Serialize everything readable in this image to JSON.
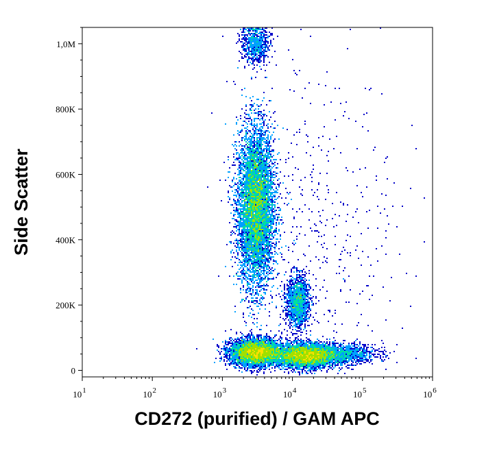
{
  "chart_data": {
    "type": "scatter",
    "subtype": "flow-cytometry-density-dot-plot",
    "xlabel": "CD272 (purified) / GAM APC",
    "ylabel": "Side Scatter",
    "xscale": "log",
    "xlim": [
      10,
      1000000
    ],
    "ylim": [
      -20000,
      1050000
    ],
    "grid": false,
    "legend": "none",
    "x_ticks": [
      {
        "value": 10,
        "base": "10",
        "exp": "1"
      },
      {
        "value": 100,
        "base": "10",
        "exp": "2"
      },
      {
        "value": 1000,
        "base": "10",
        "exp": "3"
      },
      {
        "value": 10000,
        "base": "10",
        "exp": "4"
      },
      {
        "value": 100000,
        "base": "10",
        "exp": "5"
      },
      {
        "value": 1000000,
        "base": "10",
        "exp": "6"
      }
    ],
    "y_ticks": [
      {
        "value": 0,
        "label": "0"
      },
      {
        "value": 200000,
        "label": "200K"
      },
      {
        "value": 400000,
        "label": "400K"
      },
      {
        "value": 600000,
        "label": "600K"
      },
      {
        "value": 800000,
        "label": "800K"
      },
      {
        "value": 1000000,
        "label": "1,0M"
      }
    ],
    "density_colors": [
      "#0000c8",
      "#00a0ff",
      "#00e0a0",
      "#a0e000",
      "#ffe000",
      "#ff6000",
      "#e00000"
    ],
    "populations": [
      {
        "x_center": 3000,
        "x_spread_decades": 0.13,
        "y_center": 500000,
        "y_spread": 120000,
        "fraction": 0.4,
        "peak_density": "yellow-red"
      },
      {
        "x_center": 12000,
        "x_spread_decades": 0.08,
        "y_center": 210000,
        "y_spread": 40000,
        "fraction": 0.06,
        "peak_density": "green"
      },
      {
        "x_center": 3000,
        "x_spread_decades": 0.18,
        "y_center": 55000,
        "y_spread": 20000,
        "fraction": 0.22,
        "peak_density": "red"
      },
      {
        "x_center": 15000,
        "x_spread_decades": 0.22,
        "y_center": 45000,
        "y_spread": 18000,
        "fraction": 0.22,
        "peak_density": "red"
      },
      {
        "x_center": 50000,
        "x_spread_decades": 0.25,
        "y_center": 50000,
        "y_spread": 15000,
        "fraction": 0.05,
        "peak_density": "cyan"
      },
      {
        "x_center": 3000,
        "x_spread_decades": 0.1,
        "y_center": 1000000,
        "y_spread": 30000,
        "fraction": 0.03,
        "peak_density": "blue"
      },
      {
        "x_center": 20000,
        "x_spread_decades": 0.6,
        "y_center": 400000,
        "y_spread": 250000,
        "fraction": 0.02,
        "peak_density": "blue"
      }
    ]
  }
}
